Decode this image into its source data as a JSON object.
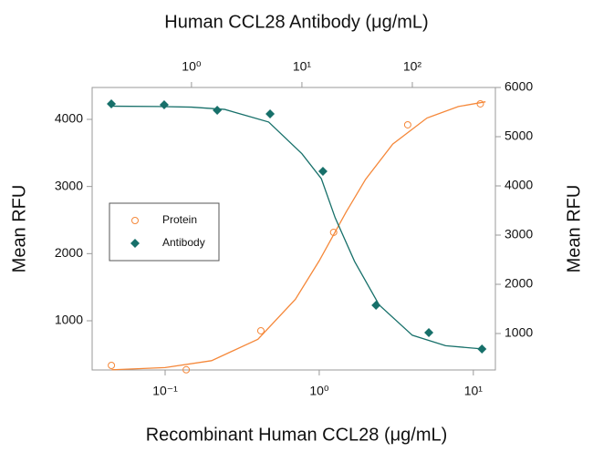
{
  "chart_data": {
    "type": "scatter",
    "x2label": "Human CCL28 Antibody (μg/mL)",
    "xlabel": "Recombinant Human CCL28 (μg/mL)",
    "ylabel": "Mean RFU",
    "y2label": "Mean RFU",
    "xscale": "log",
    "x2scale": "log",
    "xlim": [
      0.0336,
      13.9
    ],
    "x2lim": [
      0.126,
      565
    ],
    "ylim": [
      267,
      4475
    ],
    "y2lim": [
      259,
      6000
    ],
    "xticks": [
      {
        "value": 0.1,
        "label": "10⁻¹"
      },
      {
        "value": 1,
        "label": "10⁰"
      },
      {
        "value": 10,
        "label": "10¹"
      }
    ],
    "x2ticks": [
      {
        "value": 1,
        "label": "10⁰"
      },
      {
        "value": 10,
        "label": "10¹"
      },
      {
        "value": 100,
        "label": "10²"
      }
    ],
    "yticks": [
      1000,
      2000,
      3000,
      4000
    ],
    "y2ticks": [
      1000,
      2000,
      3000,
      4000,
      5000,
      6000
    ],
    "legend": "left",
    "series": [
      {
        "name": "Protein",
        "color": "#f5883a",
        "marker": "circle-open",
        "x": [
          0.0448,
          0.137,
          0.418,
          1.24,
          3.75,
          11.1
        ],
        "values": [
          335,
          270,
          851,
          2317,
          3919,
          4231
        ],
        "fit_x": [
          0.045,
          0.1,
          0.2,
          0.4,
          0.7,
          1,
          1.5,
          2,
          3,
          5,
          8,
          12
        ],
        "fit_values": [
          270,
          303,
          405,
          724,
          1320,
          1894,
          2626,
          3108,
          3632,
          4020,
          4191,
          4262
        ]
      },
      {
        "name": "Antibody",
        "color": "#17706a",
        "marker": "diamond",
        "axis": "y2",
        "xaxis": "x2",
        "x": [
          0.188,
          0.566,
          1.71,
          5.15,
          15.5,
          46.9,
          141,
          427
        ],
        "values": [
          5667,
          5648,
          5537,
          5463,
          4296,
          1574,
          1019,
          685
        ],
        "fit_x": [
          0.188,
          0.5,
          1,
          2,
          5,
          10,
          15,
          20,
          30,
          50,
          100,
          200,
          450
        ],
        "fit_values": [
          5620,
          5614,
          5601,
          5554,
          5298,
          4654,
          4146,
          3353,
          2464,
          1582,
          964,
          752,
          682
        ]
      }
    ]
  }
}
